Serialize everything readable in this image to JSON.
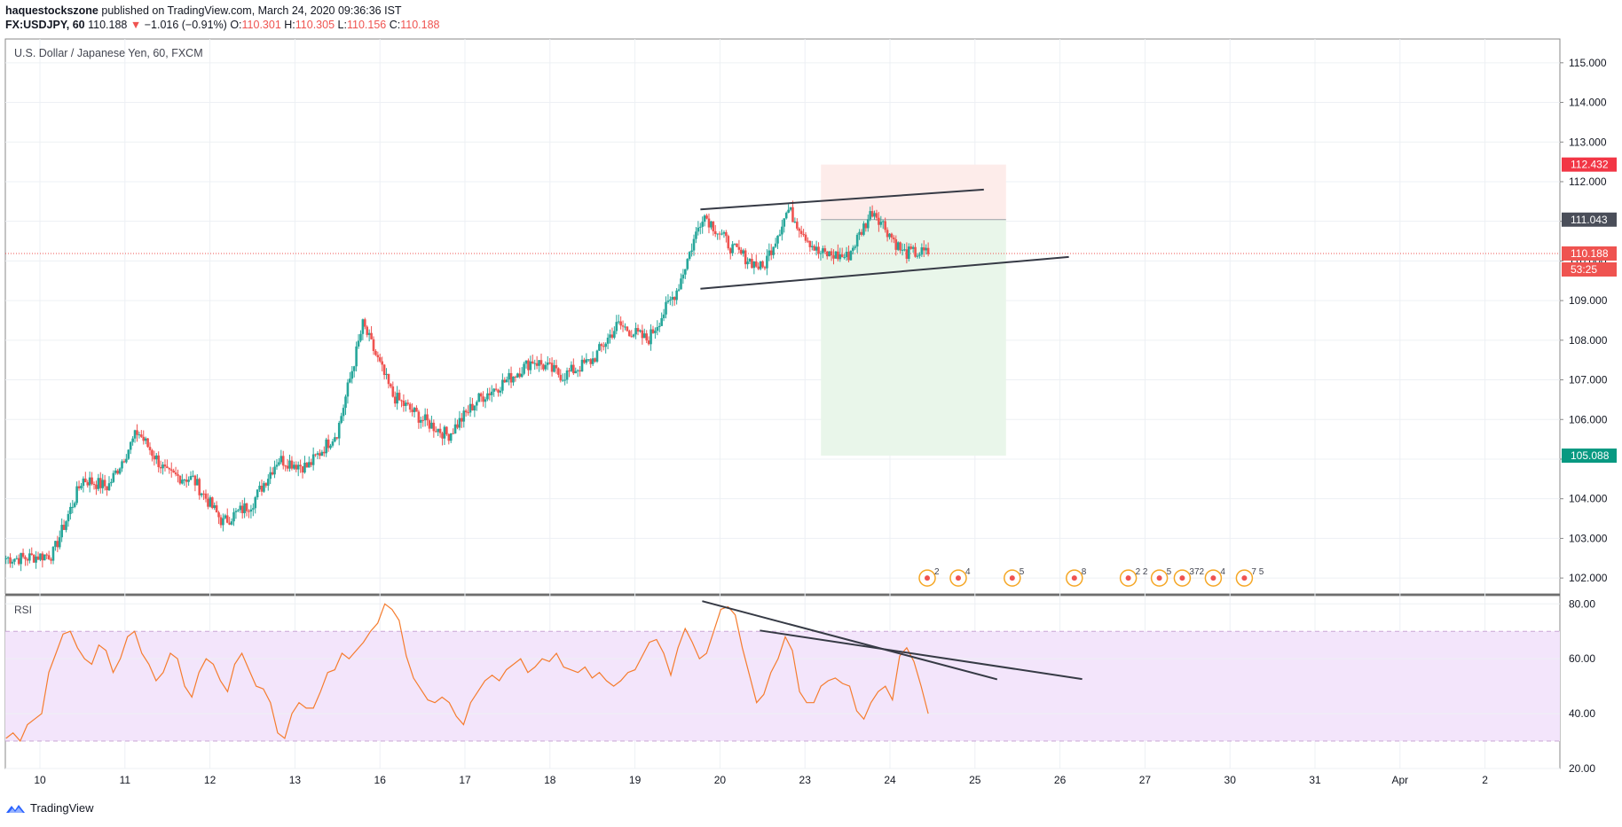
{
  "header": {
    "publisher": "haquestockszone",
    "published_text": "published on TradingView.com, March 24, 2020 09:36:36 IST",
    "symbol": "FX:USDJPY, 60",
    "last": "110.188",
    "change_arrow": "▼",
    "change": "−1.016 (−0.91%)",
    "o_label": "O:",
    "o_value": "110.301",
    "h_label": "H:",
    "h_value": "110.305",
    "l_label": "L:",
    "l_value": "110.156",
    "c_label": "C:",
    "c_value": "110.188"
  },
  "footer": {
    "brand": "TradingView",
    "logo_icon": "tradingview-logo-icon"
  },
  "colors": {
    "up": "#26a69a",
    "down": "#ef5350",
    "rsi_line": "#f57c2e",
    "rsi_band": "#f3e5fb",
    "trendline": "#363a45",
    "grid": "#edf0f4",
    "stop_zone": "#fdecea",
    "target_zone": "#e9f6ea"
  },
  "chart_data": [
    {
      "type": "candlestick",
      "title": "U.S. Dollar / Japanese Yen, 60, FXCM",
      "x_tick_labels": [
        "10",
        "11",
        "12",
        "13",
        "16",
        "17",
        "18",
        "19",
        "20",
        "23",
        "24",
        "25",
        "26",
        "27",
        "30",
        "31",
        "Apr",
        "2"
      ],
      "y_ticks": [
        "115.000",
        "114.000",
        "113.000",
        "112.000",
        "111.000",
        "110.000",
        "109.000",
        "108.000",
        "107.000",
        "106.000",
        "105.000",
        "104.000",
        "103.000",
        "102.000"
      ],
      "ylim": [
        101.6,
        115.6
      ],
      "close_path": [
        [
          "10",
          102.5
        ],
        [
          "10",
          102.6
        ],
        [
          "10",
          104.5
        ],
        [
          "11",
          104.3
        ],
        [
          "11",
          105.7
        ],
        [
          "11",
          104.6
        ],
        [
          "12",
          104.5
        ],
        [
          "12",
          103.4
        ],
        [
          "12",
          103.9
        ],
        [
          "13",
          105.0
        ],
        [
          "13",
          104.8
        ],
        [
          "13",
          105.7
        ],
        [
          "16",
          108.4
        ],
        [
          "16",
          106.6
        ],
        [
          "16",
          106.0
        ],
        [
          "17",
          105.6
        ],
        [
          "17",
          106.5
        ],
        [
          "17",
          107.0
        ],
        [
          "18",
          107.5
        ],
        [
          "18",
          107.1
        ],
        [
          "18",
          107.5
        ],
        [
          "19",
          108.4
        ],
        [
          "19",
          108.0
        ],
        [
          "19",
          109.3
        ],
        [
          "20",
          111.2
        ],
        [
          "20",
          110.3
        ],
        [
          "20",
          109.8
        ],
        [
          "23",
          111.3
        ],
        [
          "23",
          110.2
        ],
        [
          "23",
          110.1
        ],
        [
          "24",
          111.3
        ],
        [
          "24",
          110.2
        ]
      ],
      "price_labels": {
        "stop": "112.432",
        "entry": "111.043",
        "last": "110.188",
        "countdown": "53:25",
        "target": "105.088"
      },
      "levels": {
        "stop": 112.432,
        "entry": 111.043,
        "last": 110.188,
        "target": 105.088
      },
      "channel": {
        "upper": [
          [
            "20",
            111.3
          ],
          [
            "25",
            111.8
          ]
        ],
        "lower": [
          [
            "20",
            109.3
          ],
          [
            "26",
            110.1
          ]
        ]
      },
      "events": [
        {
          "day": "24",
          "label": "2"
        },
        {
          "day": "24",
          "label": "4"
        },
        {
          "day": "25",
          "label": "8"
        },
        {
          "day": "25",
          "label": "5"
        },
        {
          "day": "26",
          "label": "2 2"
        },
        {
          "day": "26",
          "label": "5"
        },
        {
          "day": "27",
          "label": "372"
        },
        {
          "day": "27",
          "label": "4"
        },
        {
          "day": "27",
          "label": "7 5"
        }
      ]
    },
    {
      "type": "line",
      "title": "RSI",
      "y_ticks": [
        "80.00",
        "60.00",
        "40.00",
        "20.00"
      ],
      "ylim": [
        20,
        83
      ],
      "band": [
        30,
        70
      ],
      "values": [
        31,
        33,
        30,
        36,
        38,
        40,
        55,
        62,
        69,
        70,
        64,
        60,
        58,
        65,
        63,
        55,
        60,
        68,
        70,
        62,
        58,
        52,
        55,
        62,
        60,
        50,
        46,
        55,
        60,
        58,
        52,
        48,
        58,
        62,
        56,
        50,
        49,
        44,
        33,
        31,
        40,
        44,
        42,
        42,
        48,
        55,
        56,
        62,
        60,
        63,
        66,
        70,
        73,
        80,
        78,
        74,
        61,
        53,
        49,
        45,
        44,
        46,
        44,
        39,
        36,
        44,
        48,
        52,
        54,
        52,
        56,
        58,
        60,
        55,
        57,
        60,
        59,
        62,
        57,
        56,
        55,
        57,
        53,
        55,
        52,
        50,
        52,
        55,
        56,
        61,
        66,
        67,
        62,
        54,
        64,
        71,
        66,
        60,
        62,
        70,
        78,
        79,
        76,
        64,
        54,
        44,
        47,
        55,
        60,
        68,
        63,
        48,
        44,
        44,
        50,
        52,
        53,
        51,
        50,
        41,
        38,
        44,
        48,
        50,
        45,
        61,
        64,
        59,
        50,
        40
      ],
      "trendlines": [
        [
          [
            0,
            81.0
          ],
          [
            1,
            52.5
          ]
        ],
        [
          [
            0,
            70.3
          ],
          [
            1,
            52.6
          ]
        ]
      ]
    }
  ]
}
